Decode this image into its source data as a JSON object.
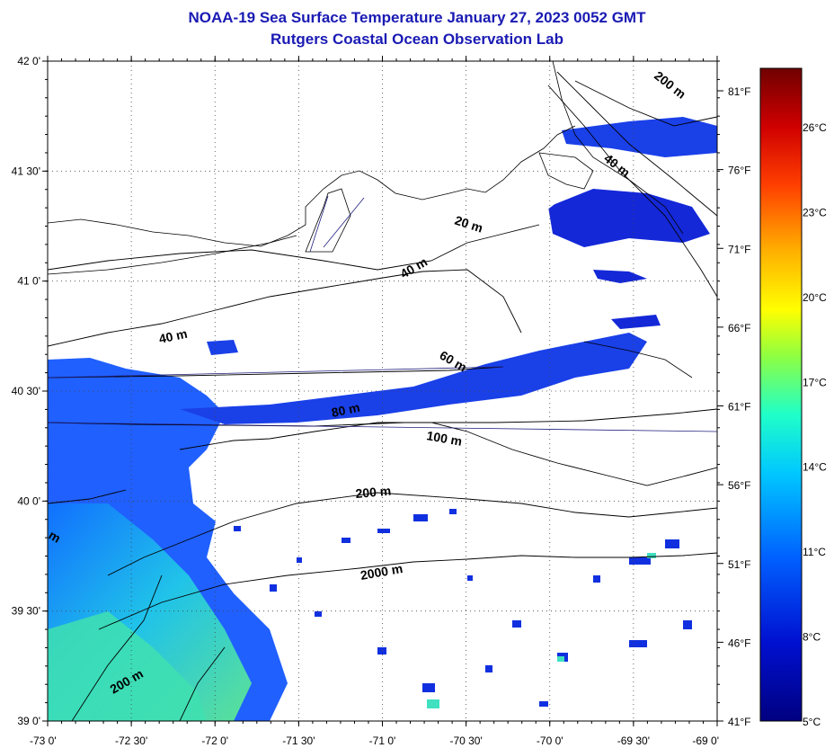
{
  "header": {
    "title": "NOAA-19 Sea Surface Temperature January 27, 2023 0052 GMT",
    "subtitle": "Rutgers Coastal Ocean Observation Lab"
  },
  "axes": {
    "lat_labels": [
      "42 0'",
      "41 30'",
      "41 0'",
      "40 30'",
      "40 0'",
      "39 30'",
      "39 0'"
    ],
    "lon_labels": [
      "-73 0'",
      "-72 30'",
      "-72 0'",
      "-71 30'",
      "-71 0'",
      "-70 30'",
      "-70 0'",
      "-69 30'",
      "-69 0'"
    ],
    "fahrenheit_labels": [
      "81°F",
      "76°F",
      "71°F",
      "66°F",
      "61°F",
      "56°F",
      "51°F",
      "46°F",
      "41°F"
    ]
  },
  "colorbar": {
    "labels": [
      "26°C",
      "23°C",
      "20°C",
      "17°C",
      "14°C",
      "11°C",
      "8°C",
      "5°C"
    ],
    "colors": [
      "#7a0000",
      "#d40000",
      "#ff4400",
      "#ff9900",
      "#ffee00",
      "#a8ff30",
      "#33ffaa",
      "#00e0ff",
      "#0090ff",
      "#0030ff",
      "#000090"
    ]
  },
  "depth_labels": [
    {
      "text": "200 m",
      "rot": 38
    },
    {
      "text": "40 m",
      "rot": 38
    },
    {
      "text": "20 m",
      "rot": 18
    },
    {
      "text": "40 m",
      "rot": -30
    },
    {
      "text": "40 m",
      "rot": -12
    },
    {
      "text": "60 m",
      "rot": 30
    },
    {
      "text": "80 m",
      "rot": -12
    },
    {
      "text": "100 m",
      "rot": 10
    },
    {
      "text": "200 m",
      "rot": -5
    },
    {
      "text": "2000 m",
      "rot": -10
    },
    {
      "text": "m",
      "rot": 30
    },
    {
      "text": "200 m",
      "rot": -30
    }
  ]
}
